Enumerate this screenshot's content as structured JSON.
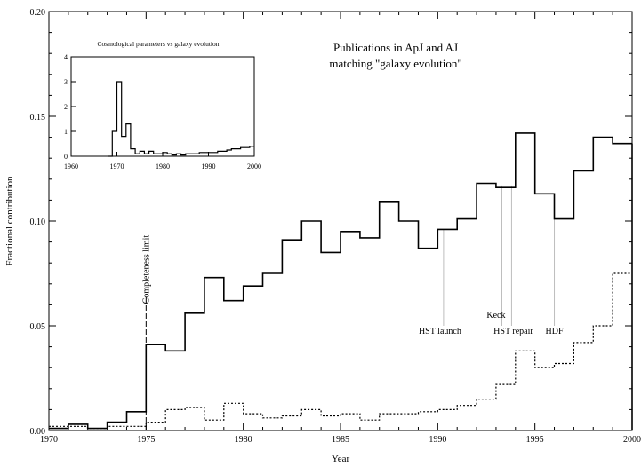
{
  "chart_data": [
    {
      "type": "line",
      "step": true,
      "title": "Publications in ApJ and AJ matching \"galaxy evolution\"",
      "title_lines": [
        "Publications in ApJ and AJ",
        "matching \"galaxy evolution\""
      ],
      "xlabel": "Year",
      "ylabel": "Fractional contribution",
      "xlim": [
        1970,
        2000
      ],
      "ylim": [
        0,
        0.2
      ],
      "xticks": [
        1970,
        1975,
        1980,
        1985,
        1990,
        1995,
        2000
      ],
      "xtick_labels": [
        "1970",
        "1975",
        "1980",
        "1985",
        "1990",
        "1995",
        "2000"
      ],
      "yticks": [
        0,
        0.05,
        0.1,
        0.15,
        0.2
      ],
      "ytick_labels": [
        "0.00",
        "0.05",
        "0.10",
        "0.15",
        "0.20"
      ],
      "x": [
        1970,
        1971,
        1972,
        1973,
        1974,
        1975,
        1976,
        1977,
        1978,
        1979,
        1980,
        1981,
        1982,
        1983,
        1984,
        1985,
        1986,
        1987,
        1988,
        1989,
        1990,
        1991,
        1992,
        1993,
        1994,
        1995,
        1996,
        1997,
        1998,
        1999
      ],
      "series": [
        {
          "style": "solid",
          "values": [
            0.001,
            0.003,
            0.001,
            0.004,
            0.009,
            0.041,
            0.038,
            0.056,
            0.073,
            0.062,
            0.069,
            0.075,
            0.091,
            0.1,
            0.085,
            0.095,
            0.092,
            0.109,
            0.1,
            0.087,
            0.096,
            0.101,
            0.118,
            0.116,
            0.142,
            0.113,
            0.101,
            0.124,
            0.14,
            0.137
          ]
        },
        {
          "style": "dotted",
          "values": [
            0.002,
            0.002,
            0.001,
            0.002,
            0.002,
            0.004,
            0.01,
            0.011,
            0.005,
            0.013,
            0.008,
            0.006,
            0.007,
            0.01,
            0.007,
            0.008,
            0.005,
            0.008,
            0.008,
            0.009,
            0.01,
            0.012,
            0.015,
            0.022,
            0.038,
            0.03,
            0.032,
            0.042,
            0.05,
            0.075
          ]
        }
      ],
      "annotations": [
        {
          "label": "Completeness limit",
          "x": 1975,
          "y_from": 0.0,
          "y_to": 0.065,
          "style": "dashed",
          "label_orientation": "vertical"
        },
        {
          "label": "HST launch",
          "x": 1990.3,
          "y_from": 0.05,
          "y_to": 0.096
        },
        {
          "label": "Keck",
          "x": 1993.3,
          "y_from": 0.05,
          "y_to": 0.117
        },
        {
          "label": "HST repair",
          "x": 1993.8,
          "y_from": 0.05,
          "y_to": 0.117
        },
        {
          "label": "HDF",
          "x": 1996.0,
          "y_from": 0.05,
          "y_to": 0.101
        }
      ]
    },
    {
      "type": "line",
      "step": true,
      "title": "Cosmological parameters vs galaxy evolution",
      "xlim": [
        1960,
        2000
      ],
      "ylim": [
        0,
        4
      ],
      "xticks": [
        1960,
        1970,
        1980,
        1990,
        2000
      ],
      "xtick_labels": [
        "1960",
        "1970",
        "1980",
        "1990",
        "2000"
      ],
      "yticks": [
        0,
        1,
        2,
        3,
        4
      ],
      "ytick_labels": [
        "0",
        "1",
        "2",
        "3",
        "4"
      ],
      "x": [
        1968,
        1969,
        1970,
        1971,
        1972,
        1973,
        1974,
        1975,
        1976,
        1977,
        1978,
        1979,
        1980,
        1981,
        1982,
        1983,
        1984,
        1985,
        1986,
        1987,
        1988,
        1989,
        1990,
        1991,
        1992,
        1993,
        1994,
        1995,
        1996,
        1997,
        1998,
        1999
      ],
      "series": [
        {
          "style": "solid",
          "values": [
            0,
            1.0,
            3.0,
            0.8,
            1.3,
            0.3,
            0.1,
            0.2,
            0.1,
            0.2,
            0.1,
            0.1,
            0.15,
            0.1,
            0.05,
            0.1,
            0.05,
            0.1,
            0.1,
            0.1,
            0.15,
            0.15,
            0.15,
            0.15,
            0.2,
            0.2,
            0.25,
            0.3,
            0.3,
            0.35,
            0.35,
            0.4
          ]
        }
      ]
    }
  ]
}
